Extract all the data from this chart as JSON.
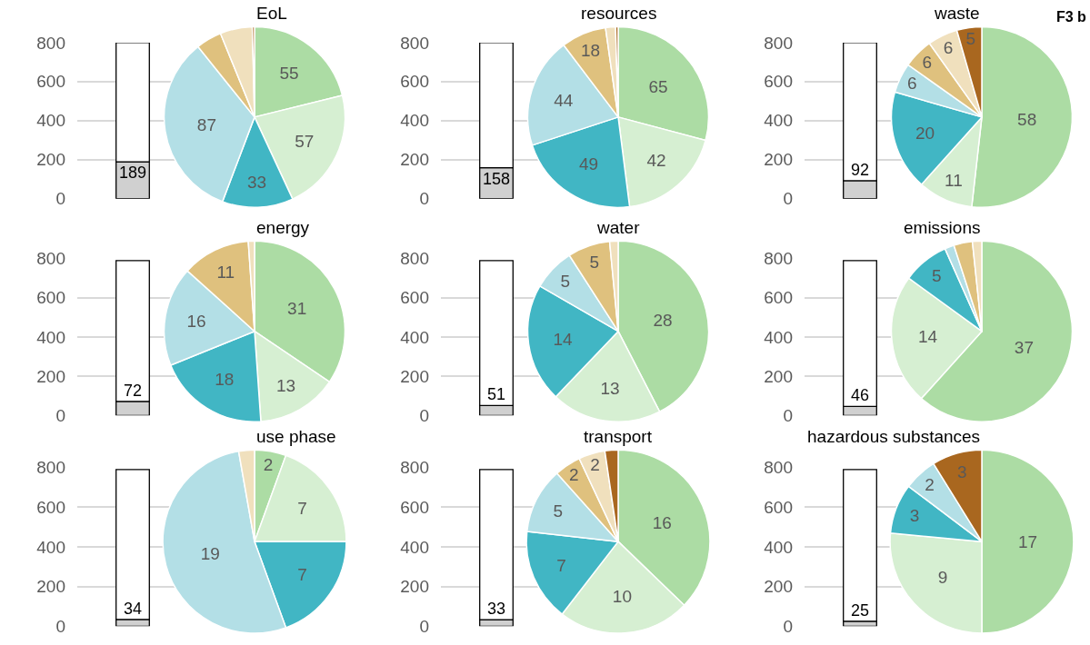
{
  "chart_data": [
    {
      "type": "bar",
      "stacked": true,
      "categories": [
        null
      ],
      "series": [
        {
          "color": "#d0d0d0",
          "values": [
            189
          ],
          "value_labels": [
            "189"
          ]
        },
        {
          "color": "#ffffff",
          "values": [
            611
          ],
          "value_labels": [
            null
          ]
        }
      ],
      "ylim": [
        0,
        800
      ],
      "yticks": [
        0,
        200,
        400,
        600,
        800
      ],
      "grid": "y"
    },
    {
      "type": "pie",
      "title": "EoL",
      "categories": [
        null,
        null,
        null,
        null,
        null,
        null,
        null
      ],
      "values": [
        55,
        57,
        33,
        87,
        12,
        15,
        1
      ],
      "colors": [
        "#acdca4",
        "#d6efd2",
        "#41b6c4",
        "#b3dfe6",
        "#dfc17e",
        "#f0e0bd",
        "#a9671f"
      ],
      "value_labels": [
        "55",
        "57",
        "33",
        "87",
        null,
        null,
        null
      ]
    },
    {
      "type": "bar",
      "stacked": true,
      "categories": [
        null
      ],
      "series": [
        {
          "color": "#d0d0d0",
          "values": [
            158
          ],
          "value_labels": [
            "158"
          ]
        },
        {
          "color": "#ffffff",
          "values": [
            642
          ],
          "value_labels": [
            null
          ]
        }
      ],
      "ylim": [
        0,
        800
      ],
      "yticks": [
        0,
        200,
        400,
        600,
        800
      ],
      "grid": "y"
    },
    {
      "type": "pie",
      "title": "resources",
      "categories": [
        null,
        null,
        null,
        null,
        null,
        null,
        null
      ],
      "values": [
        65,
        42,
        49,
        44,
        18,
        4,
        1
      ],
      "colors": [
        "#acdca4",
        "#d6efd2",
        "#41b6c4",
        "#b3dfe6",
        "#dfc17e",
        "#f0e0bd",
        "#a9671f"
      ],
      "value_labels": [
        "65",
        "42",
        "49",
        "44",
        "18",
        null,
        null
      ]
    },
    {
      "type": "bar",
      "stacked": true,
      "categories": [
        null
      ],
      "series": [
        {
          "color": "#d0d0d0",
          "values": [
            92
          ],
          "value_labels": [
            "92"
          ]
        },
        {
          "color": "#ffffff",
          "values": [
            708
          ],
          "value_labels": [
            null
          ]
        }
      ],
      "ylim": [
        0,
        800
      ],
      "yticks": [
        0,
        200,
        400,
        600,
        800
      ],
      "grid": "y"
    },
    {
      "type": "pie",
      "title": "waste",
      "annotations": [
        "F3 b"
      ],
      "categories": [
        null,
        null,
        null,
        null,
        null,
        null,
        null
      ],
      "values": [
        58,
        11,
        20,
        6,
        6,
        6,
        5
      ],
      "colors": [
        "#acdca4",
        "#d6efd2",
        "#41b6c4",
        "#b3dfe6",
        "#dfc17e",
        "#f0e0bd",
        "#a9671f"
      ],
      "value_labels": [
        "58",
        "11",
        "20",
        "6",
        "6",
        "6",
        "5"
      ]
    },
    {
      "type": "bar",
      "stacked": true,
      "categories": [
        null
      ],
      "series": [
        {
          "color": "#d0d0d0",
          "values": [
            72
          ],
          "value_labels": [
            "72"
          ]
        },
        {
          "color": "#ffffff",
          "values": [
            718
          ],
          "value_labels": [
            null
          ]
        }
      ],
      "ylim": [
        0,
        800
      ],
      "yticks": [
        0,
        200,
        400,
        600,
        800
      ],
      "grid": "y"
    },
    {
      "type": "pie",
      "title": "energy",
      "categories": [
        null,
        null,
        null,
        null,
        null,
        null
      ],
      "values": [
        31,
        13,
        18,
        16,
        11,
        1
      ],
      "colors": [
        "#acdca4",
        "#d6efd2",
        "#41b6c4",
        "#b3dfe6",
        "#dfc17e",
        "#f0e0bd"
      ],
      "value_labels": [
        "31",
        "13",
        "18",
        "16",
        "11",
        null
      ]
    },
    {
      "type": "bar",
      "stacked": true,
      "categories": [
        null
      ],
      "series": [
        {
          "color": "#d0d0d0",
          "values": [
            51
          ],
          "value_labels": [
            "51"
          ]
        },
        {
          "color": "#ffffff",
          "values": [
            739
          ],
          "value_labels": [
            null
          ]
        }
      ],
      "ylim": [
        0,
        800
      ],
      "yticks": [
        0,
        200,
        400,
        600,
        800
      ],
      "grid": "y"
    },
    {
      "type": "pie",
      "title": "water",
      "categories": [
        null,
        null,
        null,
        null,
        null,
        null
      ],
      "values": [
        28,
        13,
        14,
        5,
        5,
        1
      ],
      "colors": [
        "#acdca4",
        "#d6efd2",
        "#41b6c4",
        "#b3dfe6",
        "#dfc17e",
        "#f0e0bd"
      ],
      "value_labels": [
        "28",
        "13",
        "14",
        "5",
        "5",
        null
      ]
    },
    {
      "type": "bar",
      "stacked": true,
      "categories": [
        null
      ],
      "series": [
        {
          "color": "#d0d0d0",
          "values": [
            46
          ],
          "value_labels": [
            "46"
          ]
        },
        {
          "color": "#ffffff",
          "values": [
            744
          ],
          "value_labels": [
            null
          ]
        }
      ],
      "ylim": [
        0,
        800
      ],
      "yticks": [
        0,
        200,
        400,
        600,
        800
      ],
      "grid": "y"
    },
    {
      "type": "pie",
      "title": "emissions",
      "categories": [
        null,
        null,
        null,
        null,
        null,
        null
      ],
      "values": [
        37,
        14,
        5,
        1,
        2,
        1
      ],
      "colors": [
        "#acdca4",
        "#d6efd2",
        "#41b6c4",
        "#b3dfe6",
        "#dfc17e",
        "#f0e0bd"
      ],
      "value_labels": [
        "37",
        "14",
        "5",
        null,
        null,
        null
      ]
    },
    {
      "type": "bar",
      "stacked": true,
      "categories": [
        null
      ],
      "series": [
        {
          "color": "#d0d0d0",
          "values": [
            34
          ],
          "value_labels": [
            "34"
          ]
        },
        {
          "color": "#ffffff",
          "values": [
            756
          ],
          "value_labels": [
            null
          ]
        }
      ],
      "ylim": [
        0,
        800
      ],
      "yticks": [
        0,
        200,
        400,
        600,
        800
      ],
      "grid": "y"
    },
    {
      "type": "pie",
      "title": "use phase",
      "categories": [
        null,
        null,
        null,
        null,
        null
      ],
      "values": [
        2,
        7,
        7,
        19,
        1
      ],
      "colors": [
        "#acdca4",
        "#d6efd2",
        "#41b6c4",
        "#b3dfe6",
        "#f0e0bd"
      ],
      "value_labels": [
        "2",
        "7",
        "7",
        "19",
        null
      ]
    },
    {
      "type": "bar",
      "stacked": true,
      "categories": [
        null
      ],
      "series": [
        {
          "color": "#d0d0d0",
          "values": [
            33
          ],
          "value_labels": [
            "33"
          ]
        },
        {
          "color": "#ffffff",
          "values": [
            757
          ],
          "value_labels": [
            null
          ]
        }
      ],
      "ylim": [
        0,
        800
      ],
      "yticks": [
        0,
        200,
        400,
        600,
        800
      ],
      "grid": "y"
    },
    {
      "type": "pie",
      "title": "transport",
      "categories": [
        null,
        null,
        null,
        null,
        null,
        null,
        null
      ],
      "values": [
        16,
        10,
        7,
        5,
        2,
        2,
        1
      ],
      "colors": [
        "#acdca4",
        "#d6efd2",
        "#41b6c4",
        "#b3dfe6",
        "#dfc17e",
        "#f0e0bd",
        "#a9671f"
      ],
      "value_labels": [
        "16",
        "10",
        "7",
        "5",
        "2",
        "2",
        null
      ]
    },
    {
      "type": "bar",
      "stacked": true,
      "categories": [
        null
      ],
      "series": [
        {
          "color": "#d0d0d0",
          "values": [
            25
          ],
          "value_labels": [
            "25"
          ]
        },
        {
          "color": "#ffffff",
          "values": [
            765
          ],
          "value_labels": [
            null
          ]
        }
      ],
      "ylim": [
        0,
        800
      ],
      "yticks": [
        0,
        200,
        400,
        600,
        800
      ],
      "grid": "y"
    },
    {
      "type": "pie",
      "title": "hazardous substances",
      "categories": [
        null,
        null,
        null,
        null,
        null
      ],
      "values": [
        17,
        9,
        3,
        2,
        3
      ],
      "colors": [
        "#acdca4",
        "#d6efd2",
        "#41b6c4",
        "#b3dfe6",
        "#a9671f"
      ],
      "value_labels": [
        "17",
        "9",
        "3",
        "2",
        "3"
      ]
    }
  ]
}
